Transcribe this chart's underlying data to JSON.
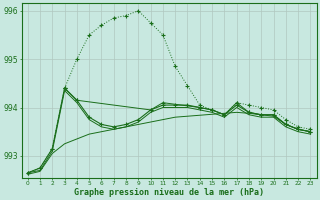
{
  "title": "Graphe pression niveau de la mer (hPa)",
  "background_color": "#c8e8e0",
  "grid_color": "#b0c8c0",
  "line_color": "#1a6e1a",
  "xlim": [
    -0.5,
    23.5
  ],
  "ylim": [
    992.55,
    996.15
  ],
  "yticks": [
    993,
    994,
    995,
    996
  ],
  "xticks": [
    0,
    1,
    2,
    3,
    4,
    5,
    6,
    7,
    8,
    9,
    10,
    11,
    12,
    13,
    14,
    15,
    16,
    17,
    18,
    19,
    20,
    21,
    22,
    23
  ],
  "series1": {
    "x": [
      0,
      1,
      2,
      3,
      4,
      5,
      6,
      7,
      8,
      9,
      10,
      11,
      12,
      13,
      14,
      15,
      16,
      17,
      18,
      19,
      20,
      21,
      22,
      23
    ],
    "y": [
      992.65,
      992.75,
      993.15,
      994.4,
      995.0,
      995.5,
      995.7,
      995.85,
      995.9,
      996.0,
      995.75,
      995.5,
      994.85,
      994.45,
      994.05,
      993.95,
      993.85,
      994.1,
      994.05,
      994.0,
      993.95,
      993.75,
      993.6,
      993.55
    ]
  },
  "series2": {
    "x": [
      0,
      1,
      2,
      3,
      4,
      5,
      6,
      7,
      8,
      9,
      10,
      11,
      12,
      13,
      14,
      15,
      16,
      17,
      18,
      19,
      20,
      21,
      22,
      23
    ],
    "y": [
      992.65,
      992.75,
      993.15,
      994.4,
      994.15,
      993.8,
      993.65,
      993.6,
      993.65,
      993.75,
      993.95,
      994.05,
      994.05,
      994.05,
      994.0,
      993.95,
      993.85,
      994.05,
      993.9,
      993.85,
      993.85,
      993.65,
      993.55,
      993.5
    ]
  },
  "series3": {
    "x": [
      0,
      1,
      2,
      3,
      4,
      5,
      6,
      7,
      8,
      9,
      10,
      11,
      12,
      13,
      14,
      15,
      16,
      17,
      18,
      19,
      20,
      21,
      22,
      23
    ],
    "y": [
      992.65,
      992.7,
      993.1,
      994.35,
      994.1,
      993.75,
      993.6,
      993.55,
      993.6,
      993.7,
      993.9,
      994.0,
      994.0,
      994.0,
      993.95,
      993.9,
      993.8,
      994.0,
      993.85,
      993.8,
      993.8,
      993.6,
      993.5,
      993.45
    ]
  },
  "series4": {
    "x": [
      0,
      1,
      2,
      3,
      4,
      5,
      6,
      7,
      8,
      9,
      10,
      11,
      12,
      13,
      14,
      15,
      16,
      17,
      18,
      19,
      20,
      21,
      22,
      23
    ],
    "y": [
      992.62,
      992.68,
      993.05,
      993.25,
      993.35,
      993.45,
      993.5,
      993.55,
      993.6,
      993.65,
      993.7,
      993.75,
      993.8,
      993.82,
      993.84,
      993.86,
      993.88,
      993.9,
      993.88,
      993.85,
      993.82,
      993.65,
      993.55,
      993.5
    ]
  },
  "series5": {
    "x": [
      3,
      4,
      10,
      11,
      14,
      15,
      16,
      17,
      18,
      19,
      20,
      21,
      22,
      23
    ],
    "y": [
      994.4,
      994.15,
      993.95,
      994.1,
      994.0,
      993.95,
      993.85,
      994.1,
      993.9,
      993.85,
      993.85,
      993.65,
      993.55,
      993.5
    ]
  }
}
